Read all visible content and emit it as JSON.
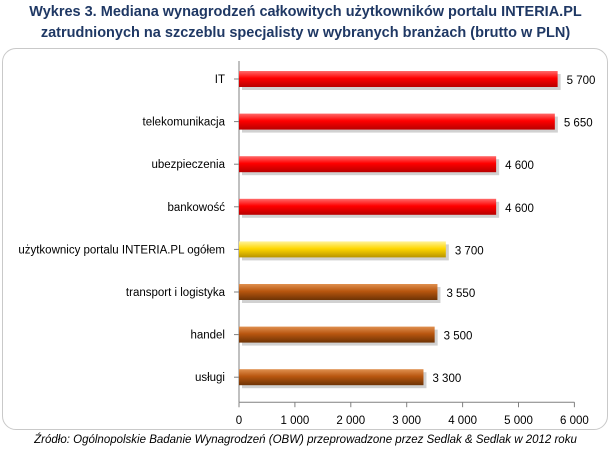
{
  "header": {
    "title_line1": "Wykres 3. Mediana wynagrodzeń całkowitych użytkowników portalu INTERIA.PL",
    "title_line2": "zatrudnionych na szczeblu specjalisty w wybranych branżach (brutto w PLN)"
  },
  "footer": {
    "source": "Źródło: Ogólnopolskie Badanie Wynagrodzeń (OBW) przeprowadzone przez Sedlak & Sedlak w 2012 roku"
  },
  "colors": {
    "title": "#1f3864",
    "red": "#ff0000",
    "yellow": "#ffd700",
    "brown": "#b8560f"
  },
  "chart_data": {
    "type": "bar",
    "orientation": "horizontal",
    "title": "Wykres 3. Mediana wynagrodzeń całkowitych użytkowników portalu INTERIA.PL zatrudnionych na szczeblu specjalisty w wybranych branżach (brutto w PLN)",
    "categories": [
      "IT",
      "telekomunikacja",
      "ubezpieczenia",
      "bankowość",
      "użytkownicy portalu  INTERIA.PL  ogółem",
      "transport i logistyka",
      "handel",
      "usługi"
    ],
    "values": [
      5700,
      5650,
      4600,
      4600,
      3700,
      3550,
      3500,
      3300
    ],
    "value_labels": [
      "5 700",
      "5 650",
      "4 600",
      "4 600",
      "3 700",
      "3 550",
      "3 500",
      "3 300"
    ],
    "bar_colors": [
      "red",
      "red",
      "red",
      "red",
      "yellow",
      "brown",
      "brown",
      "brown"
    ],
    "xlim": [
      0,
      6000
    ],
    "xticks": [
      0,
      1000,
      2000,
      3000,
      4000,
      5000,
      6000
    ],
    "xtick_labels": [
      "0",
      "1 000",
      "2 000",
      "3 000",
      "4 000",
      "5 000",
      "6 000"
    ],
    "xlabel": "",
    "ylabel": "",
    "grid": false,
    "legend": "none"
  }
}
